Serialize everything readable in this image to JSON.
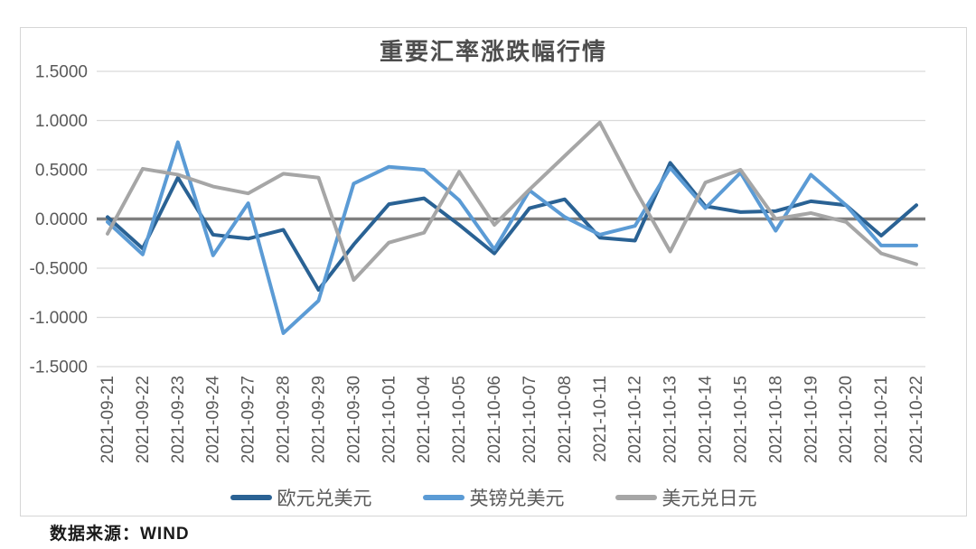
{
  "chart": {
    "title": "重要汇率涨跌幅行情",
    "source_note": "数据来源：WIND",
    "colors": {
      "eur_usd": "#2a6294",
      "gbp_usd": "#5b9bd5",
      "usd_jpy": "#a6a6a6",
      "zero_axis": "#7f7f7f",
      "gridline": "#d9d9d9",
      "tick_text": "#595959",
      "frame_border": "#d6d6d6"
    }
  },
  "chart_data": {
    "type": "line",
    "title": "重要汇率涨跌幅行情",
    "categories": [
      "2021-09-21",
      "2021-09-22",
      "2021-09-23",
      "2021-09-24",
      "2021-09-27",
      "2021-09-28",
      "2021-09-29",
      "2021-09-30",
      "2021-10-01",
      "2021-10-04",
      "2021-10-05",
      "2021-10-06",
      "2021-10-07",
      "2021-10-08",
      "2021-10-11",
      "2021-10-12",
      "2021-10-13",
      "2021-10-14",
      "2021-10-15",
      "2021-10-18",
      "2021-10-19",
      "2021-10-20",
      "2021-10-21",
      "2021-10-22"
    ],
    "series": [
      {
        "name": "欧元兑美元",
        "color": "#2a6294",
        "values": [
          0.02,
          -0.3,
          0.42,
          -0.16,
          -0.2,
          -0.11,
          -0.72,
          -0.26,
          0.15,
          0.21,
          -0.06,
          -0.35,
          0.11,
          0.2,
          -0.19,
          -0.22,
          0.57,
          0.13,
          0.07,
          0.08,
          0.18,
          0.14,
          -0.17,
          0.14
        ]
      },
      {
        "name": "英镑兑美元",
        "color": "#5b9bd5",
        "values": [
          -0.03,
          -0.36,
          0.78,
          -0.37,
          0.16,
          -1.16,
          -0.83,
          0.36,
          0.53,
          0.5,
          0.19,
          -0.31,
          0.29,
          0.02,
          -0.16,
          -0.07,
          0.52,
          0.11,
          0.47,
          -0.12,
          0.45,
          0.14,
          -0.27,
          -0.27
        ]
      },
      {
        "name": "美元兑日元",
        "color": "#a6a6a6",
        "values": [
          -0.15,
          0.51,
          0.45,
          0.33,
          0.26,
          0.46,
          0.42,
          -0.62,
          -0.24,
          -0.14,
          0.48,
          -0.06,
          0.3,
          0.64,
          0.98,
          0.3,
          -0.33,
          0.37,
          0.5,
          0.0,
          0.06,
          -0.03,
          -0.35,
          -0.46
        ]
      }
    ],
    "ylim": [
      -1.5,
      1.5
    ],
    "yticks": [
      "1.5000",
      "1.0000",
      "0.5000",
      "0.0000",
      "-0.5000",
      "-1.0000",
      "-1.5000"
    ],
    "grid": true,
    "legend_position": "bottom",
    "xlabel": "",
    "ylabel": "",
    "source": "数据来源：WIND"
  }
}
